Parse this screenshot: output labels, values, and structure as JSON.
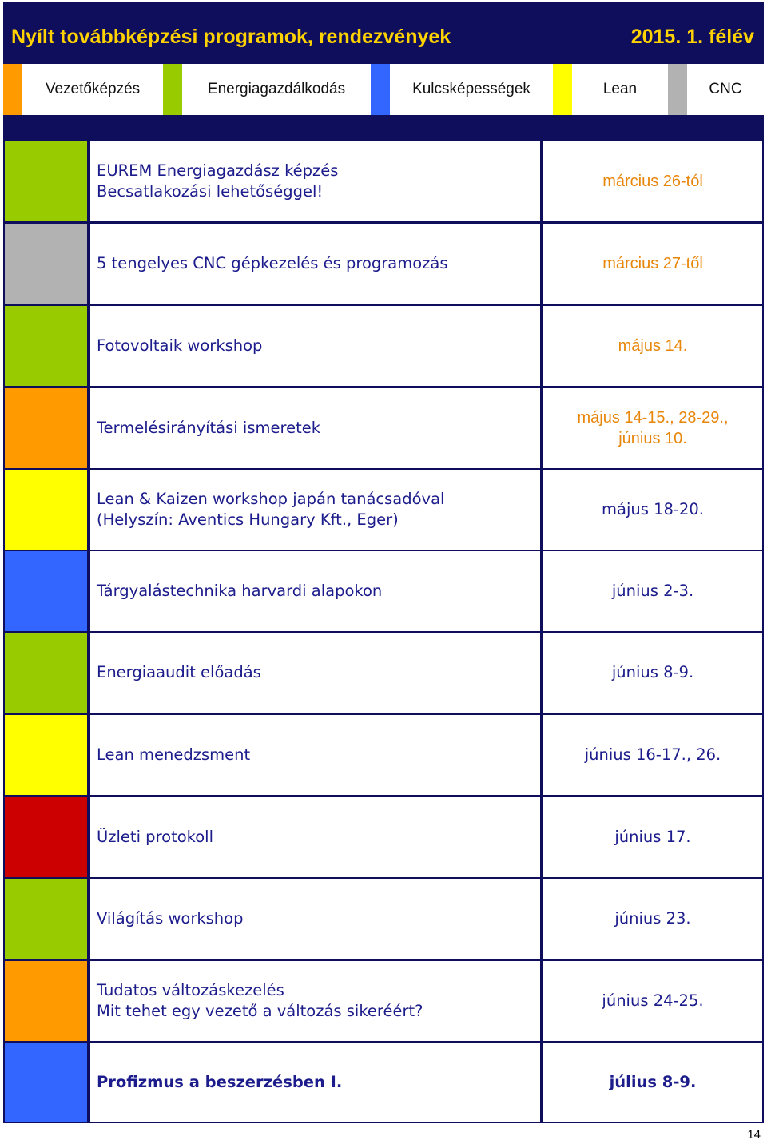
{
  "header": {
    "title": "Nyílt továbbképzési programok, rendezvények",
    "semester": "2015. 1. félév"
  },
  "colors": {
    "frame": "#0e0e5c",
    "title_text": "#ffd200",
    "orange": "#ff9a00",
    "green": "#99cc00",
    "blue": "#3366ff",
    "yellow": "#ffff00",
    "gray": "#b2b2b2",
    "red": "#cc0000",
    "event_text": "#1c1c8c",
    "date_orange": "#e8860a"
  },
  "legend": [
    {
      "label": "Vezetőképzés",
      "color": "orange"
    },
    {
      "label": "Energiagazdálkodás",
      "color": "green"
    },
    {
      "label": "Kulcsképességek",
      "color": "blue"
    },
    {
      "label": "Lean",
      "color": "yellow"
    },
    {
      "label": "CNC",
      "color": "gray"
    }
  ],
  "events": [
    {
      "color": "green",
      "line1": "EUREM Energiagazdász képzés",
      "line2": "Becsatlakozási lehetőséggel!",
      "date1": "március 26-tól",
      "date2": ""
    },
    {
      "color": "gray",
      "line1": "5 tengelyes CNC gépkezelés és programozás",
      "line2": "",
      "date1": "március 27-től",
      "date2": ""
    },
    {
      "color": "green",
      "line1": "Fotovoltaik workshop",
      "line2": "",
      "date1": "május 14.",
      "date2": ""
    },
    {
      "color": "orange",
      "line1": "Termelésirányítási ismeretek",
      "line2": "",
      "date1": "május 14-15., 28-29.,",
      "date2": "június 10."
    },
    {
      "color": "yellow",
      "line1": "Lean & Kaizen workshop japán tanácsadóval",
      "line2": "(Helyszín: Aventics Hungary Kft., Eger)",
      "date1": "május 18-20.",
      "date2": ""
    },
    {
      "color": "blue",
      "line1": "Tárgyalástechnika harvardi alapokon",
      "line2": "",
      "date1": "június 2-3.",
      "date2": ""
    },
    {
      "color": "green",
      "line1": "Energiaaudit előadás",
      "line2": "",
      "date1": "június 8-9.",
      "date2": ""
    },
    {
      "color": "yellow",
      "line1": "Lean menedzsment",
      "line2": "",
      "date1": "június 16-17., 26.",
      "date2": ""
    },
    {
      "color": "red",
      "line1": "Üzleti protokoll",
      "line2": "",
      "date1": "június 17.",
      "date2": ""
    },
    {
      "color": "green",
      "line1": "Világítás workshop",
      "line2": "",
      "date1": "június 23.",
      "date2": ""
    },
    {
      "color": "orange",
      "line1": "Tudatos változáskezelés",
      "line2": "Mit tehet egy vezető a változás sikeréért?",
      "date1": "június 24-25.",
      "date2": ""
    },
    {
      "color": "blue",
      "line1": "Profizmus a beszerzésben I.",
      "line2": "",
      "date1": "július 8-9.",
      "date2": ""
    }
  ],
  "footer": {
    "page_number": "14"
  }
}
